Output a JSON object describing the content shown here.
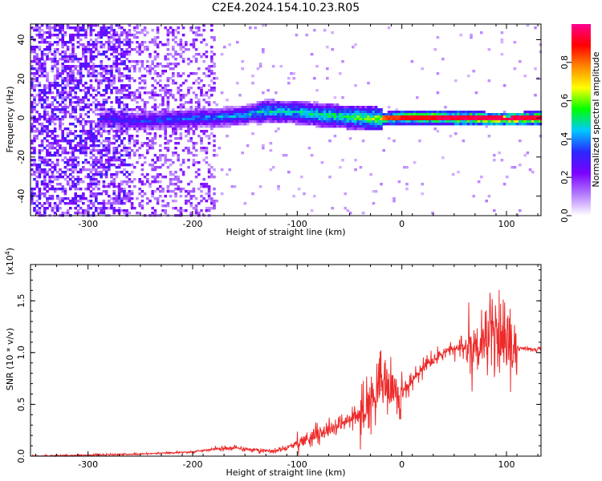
{
  "title": "C2E4.2024.154.10.23.R05",
  "colors": {
    "snr_line": "#ee2a2a",
    "frame": "#000000"
  },
  "chart_data": [
    {
      "type": "heatmap",
      "xlabel": "Height of straight line (km)",
      "ylabel": "Frequency (Hz)",
      "xlim": [
        -355,
        133
      ],
      "ylim": [
        -50,
        48
      ],
      "xticks": [
        "-300",
        "-200",
        "-100",
        "0",
        "100"
      ],
      "yticks": [
        "-40",
        "-20",
        "0",
        "20",
        "40"
      ],
      "colorbar": {
        "label": "Normalized spectral amplitude",
        "range": [
          0,
          1
        ],
        "ticks": [
          "0.0",
          "0.2",
          "0.4",
          "0.6",
          "0.8"
        ],
        "colormap": [
          "#ffffff",
          "#b57bff",
          "#7a00ff",
          "#2b28ff",
          "#00c8ff",
          "#00ff00",
          "#ffff00",
          "#ff8800",
          "#ff0000",
          "#ff0090"
        ]
      },
      "signal_track": [
        {
          "x": -290,
          "f": 0.0,
          "a": 0.35
        },
        {
          "x": -250,
          "f": -1.0,
          "a": 0.4
        },
        {
          "x": -200,
          "f": 0.5,
          "a": 0.45
        },
        {
          "x": -160,
          "f": 1.5,
          "a": 0.5
        },
        {
          "x": -130,
          "f": 4.0,
          "a": 0.55
        },
        {
          "x": -100,
          "f": 3.5,
          "a": 0.55
        },
        {
          "x": -80,
          "f": 2.0,
          "a": 0.6
        },
        {
          "x": -50,
          "f": 1.0,
          "a": 0.65
        },
        {
          "x": -20,
          "f": 0.0,
          "a": 0.75
        },
        {
          "x": 0,
          "f": 1.0,
          "a": 0.85
        },
        {
          "x": 50,
          "f": 0.5,
          "a": 0.9
        },
        {
          "x": 100,
          "f": 0.0,
          "a": 0.9
        },
        {
          "x": 133,
          "f": 0.5,
          "a": 0.9
        }
      ]
    },
    {
      "type": "line",
      "xlabel": "Height of straight line (km)",
      "ylabel": "SNR (10 * v/v)",
      "yscale_label": "(x10",
      "yscale_exp": "4",
      "yscale_close": ")",
      "xlim": [
        -355,
        133
      ],
      "ylim": [
        0,
        1.85
      ],
      "xticks": [
        "-300",
        "-200",
        "-100",
        "0",
        "100"
      ],
      "yticks": [
        "0.0",
        "0.5",
        "1.0",
        "1.5"
      ],
      "series": [
        {
          "x": [
            -355,
            -300,
            -250,
            -200,
            -180,
            -160,
            -140,
            -120,
            -100,
            -80,
            -60,
            -40,
            -30,
            -20,
            -10,
            0,
            20,
            40,
            60,
            80,
            90,
            100,
            110,
            133
          ],
          "y": [
            0.0,
            0.01,
            0.02,
            0.04,
            0.07,
            0.08,
            0.06,
            0.05,
            0.12,
            0.22,
            0.3,
            0.4,
            0.55,
            0.7,
            0.65,
            0.6,
            0.85,
            1.0,
            1.05,
            1.1,
            1.2,
            1.05,
            1.04,
            1.03
          ]
        }
      ]
    }
  ]
}
